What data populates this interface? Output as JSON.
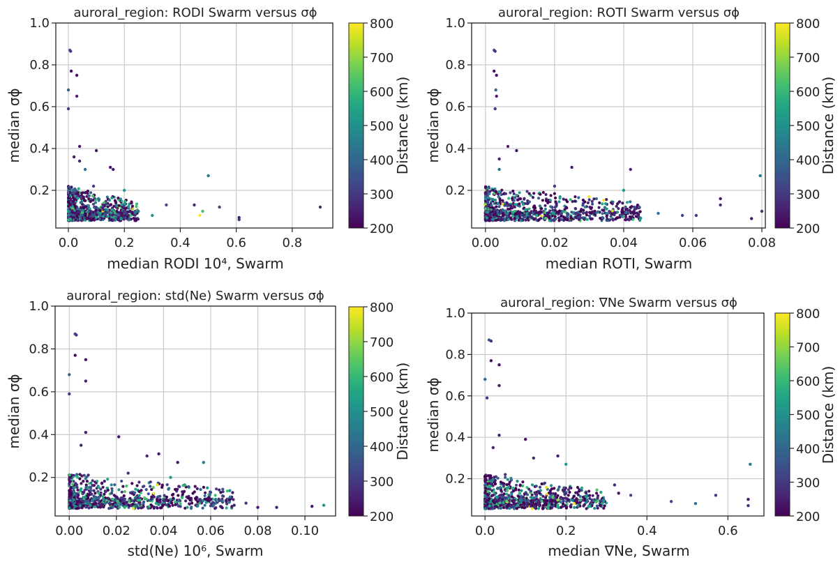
{
  "chart_data": [
    {
      "type": "scatter",
      "title": "auroral_region: RODI Swarm versus σϕ",
      "xlabel": "median RODI 10⁴, Swarm",
      "ylabel": "median σϕ",
      "xlim": [
        -0.045,
        0.945
      ],
      "ylim": [
        0.02,
        1.0
      ],
      "xticks": [
        0.0,
        0.2,
        0.4,
        0.6,
        0.8
      ],
      "xtick_labels": [
        "0.0",
        "0.2",
        "0.4",
        "0.6",
        "0.8"
      ],
      "yticks": [
        0.2,
        0.4,
        0.6,
        0.8,
        1.0
      ],
      "ytick_labels": [
        "0.2",
        "0.4",
        "0.6",
        "0.8",
        "1.0"
      ],
      "grid": true,
      "colorbar": {
        "label": "Distance (km)",
        "min": 200,
        "max": 800,
        "ticks": [
          200,
          300,
          400,
          500,
          600,
          700,
          800
        ],
        "colormap": "viridis"
      },
      "points": [
        {
          "x": 0.005,
          "y": 0.87,
          "c": 350
        },
        {
          "x": 0.008,
          "y": 0.865,
          "c": 300
        },
        {
          "x": 0.01,
          "y": 0.77,
          "c": 220
        },
        {
          "x": 0.03,
          "y": 0.75,
          "c": 230
        },
        {
          "x": 0.0,
          "y": 0.68,
          "c": 400
        },
        {
          "x": 0.03,
          "y": 0.65,
          "c": 250
        },
        {
          "x": 0.0,
          "y": 0.59,
          "c": 300
        },
        {
          "x": 0.04,
          "y": 0.41,
          "c": 250
        },
        {
          "x": 0.1,
          "y": 0.39,
          "c": 230
        },
        {
          "x": 0.04,
          "y": 0.34,
          "c": 260
        },
        {
          "x": 0.02,
          "y": 0.36,
          "c": 240
        },
        {
          "x": 0.15,
          "y": 0.31,
          "c": 220
        },
        {
          "x": 0.16,
          "y": 0.3,
          "c": 240
        },
        {
          "x": 0.06,
          "y": 0.3,
          "c": 420
        },
        {
          "x": 0.5,
          "y": 0.27,
          "c": 450
        },
        {
          "x": 0.09,
          "y": 0.22,
          "c": 300
        },
        {
          "x": 0.2,
          "y": 0.2,
          "c": 520
        },
        {
          "x": 0.35,
          "y": 0.13,
          "c": 330
        },
        {
          "x": 0.47,
          "y": 0.08,
          "c": 800
        },
        {
          "x": 0.48,
          "y": 0.1,
          "c": 620
        },
        {
          "x": 0.45,
          "y": 0.13,
          "c": 260
        },
        {
          "x": 0.54,
          "y": 0.12,
          "c": 330
        },
        {
          "x": 0.61,
          "y": 0.07,
          "c": 240
        },
        {
          "x": 0.61,
          "y": 0.06,
          "c": 280
        },
        {
          "x": 0.9,
          "y": 0.12,
          "c": 260
        },
        {
          "x": 0.3,
          "y": 0.08,
          "c": 500
        },
        {
          "x": 0.25,
          "y": 0.1,
          "c": 420
        }
      ],
      "dense_cloud": {
        "x_range": [
          0.0,
          0.25
        ],
        "y_range": [
          0.05,
          0.22
        ],
        "count": 900
      }
    },
    {
      "type": "scatter",
      "title": "auroral_region: ROTI Swarm versus σϕ",
      "xlabel": "median ROTI, Swarm",
      "ylabel": "median σϕ",
      "xlim": [
        -0.004,
        0.081
      ],
      "ylim": [
        0.02,
        1.0
      ],
      "xticks": [
        0.0,
        0.02,
        0.04,
        0.06,
        0.08
      ],
      "xtick_labels": [
        "0.00",
        "0.02",
        "0.04",
        "0.06",
        "0.08"
      ],
      "yticks": [
        0.2,
        0.4,
        0.6,
        0.8,
        1.0
      ],
      "ytick_labels": [
        "0.2",
        "0.4",
        "0.6",
        "0.8",
        "1.0"
      ],
      "grid": true,
      "colorbar": {
        "label": "Distance (km)",
        "min": 200,
        "max": 800,
        "ticks": [
          200,
          300,
          400,
          500,
          600,
          700,
          800
        ],
        "colormap": "viridis"
      },
      "points": [
        {
          "x": 0.0025,
          "y": 0.87,
          "c": 350
        },
        {
          "x": 0.0028,
          "y": 0.865,
          "c": 300
        },
        {
          "x": 0.0025,
          "y": 0.77,
          "c": 220
        },
        {
          "x": 0.0032,
          "y": 0.75,
          "c": 230
        },
        {
          "x": 0.003,
          "y": 0.68,
          "c": 400
        },
        {
          "x": 0.0032,
          "y": 0.65,
          "c": 250
        },
        {
          "x": 0.0028,
          "y": 0.59,
          "c": 300
        },
        {
          "x": 0.0065,
          "y": 0.41,
          "c": 250
        },
        {
          "x": 0.009,
          "y": 0.39,
          "c": 230
        },
        {
          "x": 0.004,
          "y": 0.35,
          "c": 260
        },
        {
          "x": 0.025,
          "y": 0.31,
          "c": 240
        },
        {
          "x": 0.004,
          "y": 0.3,
          "c": 420
        },
        {
          "x": 0.042,
          "y": 0.3,
          "c": 260
        },
        {
          "x": 0.0795,
          "y": 0.27,
          "c": 450
        },
        {
          "x": 0.02,
          "y": 0.22,
          "c": 300
        },
        {
          "x": 0.03,
          "y": 0.17,
          "c": 800
        },
        {
          "x": 0.04,
          "y": 0.2,
          "c": 520
        },
        {
          "x": 0.068,
          "y": 0.16,
          "c": 240
        },
        {
          "x": 0.068,
          "y": 0.13,
          "c": 260
        },
        {
          "x": 0.077,
          "y": 0.065,
          "c": 240
        },
        {
          "x": 0.08,
          "y": 0.1,
          "c": 280
        },
        {
          "x": 0.057,
          "y": 0.08,
          "c": 330
        },
        {
          "x": 0.05,
          "y": 0.09,
          "c": 420
        },
        {
          "x": 0.061,
          "y": 0.08,
          "c": 300
        }
      ],
      "dense_cloud": {
        "x_range": [
          0.0,
          0.045
        ],
        "y_range": [
          0.05,
          0.22
        ],
        "count": 900
      }
    },
    {
      "type": "scatter",
      "title": "auroral_region: std(Ne) Swarm versus σϕ",
      "xlabel": "std(Ne) 10⁶, Swarm",
      "ylabel": "median σϕ",
      "xlim": [
        -0.006,
        0.113
      ],
      "ylim": [
        0.02,
        1.0
      ],
      "xticks": [
        0.0,
        0.02,
        0.04,
        0.06,
        0.08,
        0.1
      ],
      "xtick_labels": [
        "0.00",
        "0.02",
        "0.04",
        "0.06",
        "0.08",
        "0.10"
      ],
      "yticks": [
        0.2,
        0.4,
        0.6,
        0.8,
        1.0
      ],
      "ytick_labels": [
        "0.2",
        "0.4",
        "0.6",
        "0.8",
        "1.0"
      ],
      "grid": true,
      "colorbar": {
        "label": "Distance (km)",
        "min": 200,
        "max": 800,
        "ticks": [
          200,
          300,
          400,
          500,
          600,
          700,
          800
        ],
        "colormap": "viridis"
      },
      "points": [
        {
          "x": 0.0025,
          "y": 0.87,
          "c": 350
        },
        {
          "x": 0.003,
          "y": 0.865,
          "c": 300
        },
        {
          "x": 0.0025,
          "y": 0.77,
          "c": 220
        },
        {
          "x": 0.007,
          "y": 0.75,
          "c": 230
        },
        {
          "x": 0.0,
          "y": 0.68,
          "c": 400
        },
        {
          "x": 0.007,
          "y": 0.65,
          "c": 250
        },
        {
          "x": 0.0,
          "y": 0.59,
          "c": 300
        },
        {
          "x": 0.007,
          "y": 0.41,
          "c": 250
        },
        {
          "x": 0.021,
          "y": 0.39,
          "c": 230
        },
        {
          "x": 0.005,
          "y": 0.35,
          "c": 260
        },
        {
          "x": 0.038,
          "y": 0.31,
          "c": 240
        },
        {
          "x": 0.033,
          "y": 0.3,
          "c": 260
        },
        {
          "x": 0.046,
          "y": 0.27,
          "c": 240
        },
        {
          "x": 0.057,
          "y": 0.27,
          "c": 450
        },
        {
          "x": 0.025,
          "y": 0.22,
          "c": 300
        },
        {
          "x": 0.043,
          "y": 0.2,
          "c": 520
        },
        {
          "x": 0.06,
          "y": 0.13,
          "c": 330
        },
        {
          "x": 0.07,
          "y": 0.07,
          "c": 260
        },
        {
          "x": 0.08,
          "y": 0.06,
          "c": 240
        },
        {
          "x": 0.088,
          "y": 0.06,
          "c": 250
        },
        {
          "x": 0.103,
          "y": 0.065,
          "c": 240
        },
        {
          "x": 0.108,
          "y": 0.07,
          "c": 500
        },
        {
          "x": 0.065,
          "y": 0.09,
          "c": 420
        },
        {
          "x": 0.075,
          "y": 0.08,
          "c": 300
        }
      ],
      "dense_cloud": {
        "x_range": [
          0.0,
          0.07
        ],
        "y_range": [
          0.05,
          0.22
        ],
        "count": 900
      }
    },
    {
      "type": "scatter",
      "title": "auroral_region: ∇Ne Swarm versus σϕ",
      "xlabel": "median ∇Ne, Swarm",
      "ylabel": "median σϕ",
      "xlim": [
        -0.033,
        0.689
      ],
      "ylim": [
        0.02,
        1.0
      ],
      "xticks": [
        0.0,
        0.2,
        0.4,
        0.6
      ],
      "xtick_labels": [
        "0.0",
        "0.2",
        "0.4",
        "0.6"
      ],
      "yticks": [
        0.2,
        0.4,
        0.6,
        0.8,
        1.0
      ],
      "ytick_labels": [
        "0.2",
        "0.4",
        "0.6",
        "0.8",
        "1.0"
      ],
      "grid": true,
      "colorbar": {
        "label": "Distance (km)",
        "min": 200,
        "max": 800,
        "ticks": [
          200,
          300,
          400,
          500,
          600,
          700,
          800
        ],
        "colormap": "viridis"
      },
      "points": [
        {
          "x": 0.01,
          "y": 0.87,
          "c": 350
        },
        {
          "x": 0.015,
          "y": 0.865,
          "c": 300
        },
        {
          "x": 0.015,
          "y": 0.77,
          "c": 220
        },
        {
          "x": 0.035,
          "y": 0.75,
          "c": 230
        },
        {
          "x": 0.0,
          "y": 0.68,
          "c": 400
        },
        {
          "x": 0.035,
          "y": 0.65,
          "c": 250
        },
        {
          "x": 0.005,
          "y": 0.59,
          "c": 300
        },
        {
          "x": 0.035,
          "y": 0.41,
          "c": 250
        },
        {
          "x": 0.1,
          "y": 0.39,
          "c": 230
        },
        {
          "x": 0.02,
          "y": 0.35,
          "c": 260
        },
        {
          "x": 0.18,
          "y": 0.31,
          "c": 240
        },
        {
          "x": 0.12,
          "y": 0.3,
          "c": 260
        },
        {
          "x": 0.2,
          "y": 0.27,
          "c": 520
        },
        {
          "x": 0.655,
          "y": 0.27,
          "c": 450
        },
        {
          "x": 0.05,
          "y": 0.22,
          "c": 300
        },
        {
          "x": 0.32,
          "y": 0.17,
          "c": 260
        },
        {
          "x": 0.33,
          "y": 0.13,
          "c": 240
        },
        {
          "x": 0.36,
          "y": 0.12,
          "c": 330
        },
        {
          "x": 0.57,
          "y": 0.12,
          "c": 300
        },
        {
          "x": 0.65,
          "y": 0.1,
          "c": 240
        },
        {
          "x": 0.65,
          "y": 0.07,
          "c": 280
        },
        {
          "x": 0.52,
          "y": 0.08,
          "c": 420
        },
        {
          "x": 0.46,
          "y": 0.09,
          "c": 330
        },
        {
          "x": 0.22,
          "y": 0.08,
          "c": 800
        }
      ],
      "dense_cloud": {
        "x_range": [
          0.0,
          0.3
        ],
        "y_range": [
          0.05,
          0.22
        ],
        "count": 900
      }
    }
  ]
}
